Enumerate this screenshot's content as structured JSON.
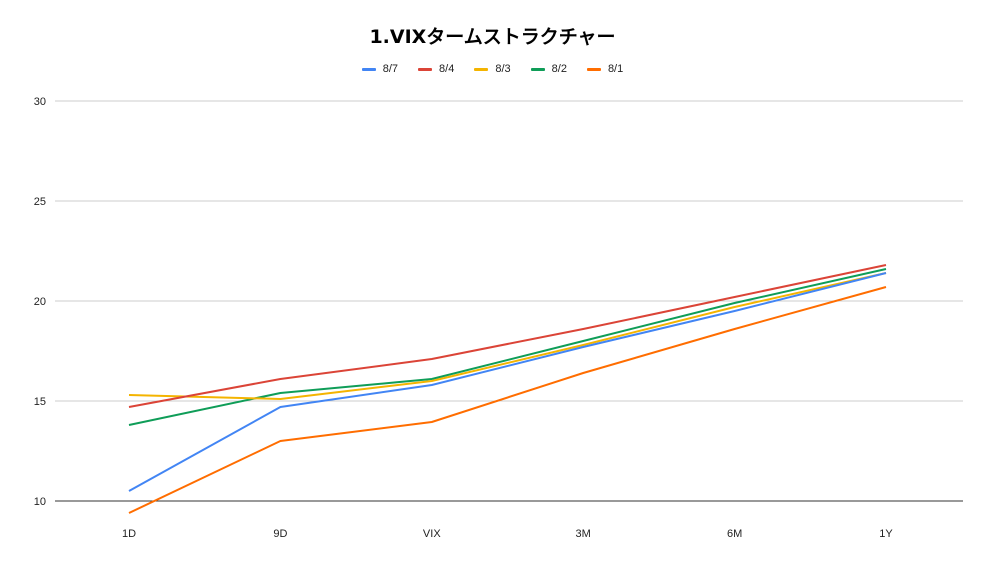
{
  "chart_data": {
    "type": "line",
    "title": "1.VIXタームストラクチャー",
    "xlabel": "",
    "ylabel": "",
    "categories": [
      "1D",
      "9D",
      "VIX",
      "3M",
      "6M",
      "1Y"
    ],
    "ylim": [
      10,
      30
    ],
    "yticks": [
      10,
      15,
      20,
      25,
      30
    ],
    "grid": true,
    "legend_position": "top",
    "series": [
      {
        "name": "8/7",
        "color": "#4285F4",
        "values": [
          10.5,
          14.7,
          15.8,
          17.7,
          19.5,
          21.4
        ]
      },
      {
        "name": "8/4",
        "color": "#DB4437",
        "values": [
          14.7,
          16.1,
          17.1,
          18.6,
          20.2,
          21.8
        ]
      },
      {
        "name": "8/3",
        "color": "#F4B400",
        "values": [
          15.3,
          15.1,
          16.0,
          17.8,
          19.7,
          21.4
        ]
      },
      {
        "name": "8/2",
        "color": "#0F9D58",
        "values": [
          13.8,
          15.4,
          16.1,
          18.0,
          19.9,
          21.6
        ]
      },
      {
        "name": "8/1",
        "color": "#FF6D00",
        "values": [
          9.4,
          13.0,
          13.95,
          16.4,
          18.6,
          20.7
        ]
      }
    ]
  }
}
